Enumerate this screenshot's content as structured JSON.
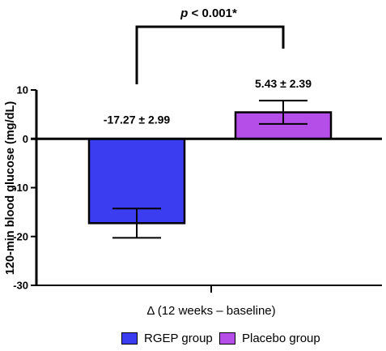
{
  "chart_data": {
    "type": "bar",
    "categories": [
      "RGEP group",
      "Placebo group"
    ],
    "series": [
      {
        "name": "RGEP group",
        "value": -17.27,
        "error": 2.99,
        "label": "-17.27 ± 2.99",
        "color": "#3a3ef0"
      },
      {
        "name": "Placebo group",
        "value": 5.43,
        "error": 2.39,
        "label": "5.43 ± 2.39",
        "color": "#b54ee8"
      }
    ],
    "ylabel": "120-min blood glucose (mg/dL)",
    "xlabel": "Δ (12 weeks – baseline)",
    "ylim": [
      -30,
      10
    ],
    "yticks": [
      -30,
      -20,
      -10,
      0,
      10
    ],
    "ytick_labels": [
      "-30",
      "-20",
      "-10",
      "0",
      "10"
    ],
    "significance": "p < 0.001*",
    "legend_position": "bottom",
    "grid": false
  }
}
